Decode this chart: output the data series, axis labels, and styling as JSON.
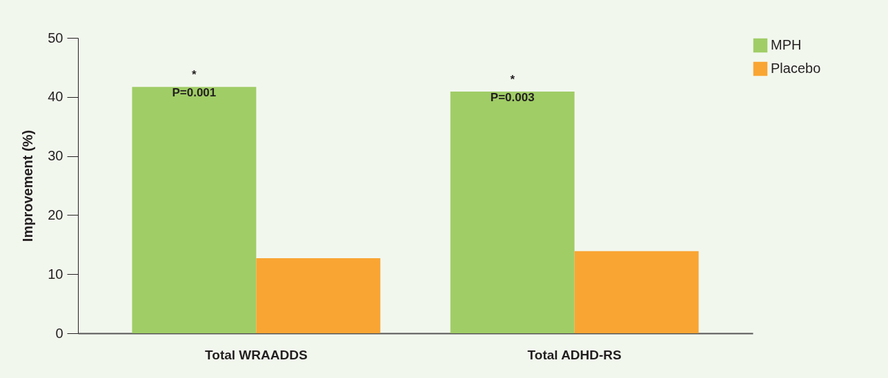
{
  "chart_data": {
    "type": "bar",
    "ylabel": "Improvement (%)",
    "categories": [
      "Total WRAADDS",
      "Total ADHD-RS"
    ],
    "series": [
      {
        "name": "MPH",
        "color": "#a0cd66",
        "values": [
          41.7,
          40.9
        ]
      },
      {
        "name": "Placebo",
        "color": "#f9a533",
        "values": [
          12.7,
          13.9
        ]
      }
    ],
    "ylim": [
      0,
      50
    ],
    "yticks": [
      0,
      10,
      20,
      30,
      40,
      50
    ],
    "grid": false,
    "legend": "right",
    "annotations": [
      "*\nP=0.001",
      "*\nP=0.003"
    ]
  }
}
